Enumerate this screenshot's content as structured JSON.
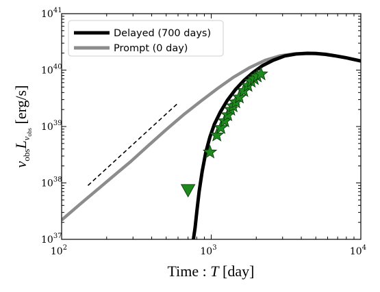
{
  "chart_data": {
    "type": "line",
    "x_scale": "log",
    "y_scale": "log",
    "xlim": [
      100,
      10000
    ],
    "ylim": [
      1e+37,
      1e+41
    ],
    "x_ticks": [
      {
        "value": 100,
        "base": "10",
        "exp": "2"
      },
      {
        "value": 1000,
        "base": "10",
        "exp": "3"
      },
      {
        "value": 10000,
        "base": "10",
        "exp": "4"
      }
    ],
    "y_ticks": [
      {
        "value": 1e+37,
        "base": "10",
        "exp": "37"
      },
      {
        "value": 1e+38,
        "base": "10",
        "exp": "38"
      },
      {
        "value": 1e+39,
        "base": "10",
        "exp": "39"
      },
      {
        "value": 1e+40,
        "base": "10",
        "exp": "40"
      },
      {
        "value": 1e+41,
        "base": "10",
        "exp": "41"
      }
    ],
    "xlabel": {
      "prefix": "Time : ",
      "var": "T",
      "unit": " [day]"
    },
    "ylabel": {
      "nu": "ν",
      "nu_sub": "obs",
      "L": "L",
      "L_sub_nu": "ν",
      "L_sub_sub": "obs",
      "unit": " [erg/s]"
    },
    "legend_position": "top-left",
    "series": [
      {
        "name": "Delayed (700 days)",
        "color": "#000000",
        "x": [
          760,
          780,
          800,
          830,
          870,
          920,
          980,
          1050,
          1150,
          1280,
          1450,
          1650,
          1900,
          2200,
          2600,
          3100,
          3700,
          4400,
          5000,
          5800,
          6800,
          8000,
          10000
        ],
        "y": [
          1e+37,
          1.6e+37,
          3e+37,
          7e+37,
          1.6e+38,
          3.5e+38,
          6.5e+38,
          1.1e+39,
          1.8e+39,
          2.9e+39,
          4.5e+39,
          6.5e+39,
          9e+39,
          1.2e+40,
          1.5e+40,
          1.78e+40,
          1.93e+40,
          1.98e+40,
          1.97e+40,
          1.9e+40,
          1.78e+40,
          1.65e+40,
          1.45e+40
        ]
      },
      {
        "name": "Prompt (0 day)",
        "color": "#8c8c8c",
        "x": [
          100,
          130,
          170,
          220,
          290,
          380,
          500,
          650,
          850,
          1100,
          1400,
          1800,
          2300,
          2900,
          3600,
          4400,
          5000,
          5800,
          6800,
          8000,
          10000
        ],
        "y": [
          2.2e+37,
          4e+37,
          7.3e+37,
          1.3e+38,
          2.4e+38,
          4.6e+38,
          8.8e+38,
          1.6e+39,
          2.8e+39,
          4.7e+39,
          7.4e+39,
          1.1e+40,
          1.5e+40,
          1.8e+40,
          1.95e+40,
          2e+40,
          1.99e+40,
          1.93e+40,
          1.8e+40,
          1.66e+40,
          1.45e+40
        ]
      }
    ],
    "reference_line": {
      "x": [
        150,
        600
      ],
      "y": [
        9e+37,
        2.6e+39
      ],
      "style": "dashed",
      "color": "#000000"
    },
    "observations": {
      "marker": "star",
      "color": "#1e8a1e",
      "x": [
        980,
        1090,
        1160,
        1230,
        1290,
        1350,
        1400,
        1460,
        1540,
        1650,
        1760,
        1850,
        1940,
        2030,
        2150
      ],
      "y": [
        3.5e+38,
        7e+38,
        9.5e+38,
        1.25e+39,
        1.6e+39,
        2e+39,
        2.3e+39,
        2.7e+39,
        3.3e+39,
        4.3e+39,
        5.3e+39,
        6.3e+39,
        7e+39,
        7.8e+39,
        8.5e+39
      ]
    },
    "upper_limit": {
      "marker": "triangle-down",
      "color": "#1e8a1e",
      "x": 700,
      "y": 7.5e+37
    }
  }
}
